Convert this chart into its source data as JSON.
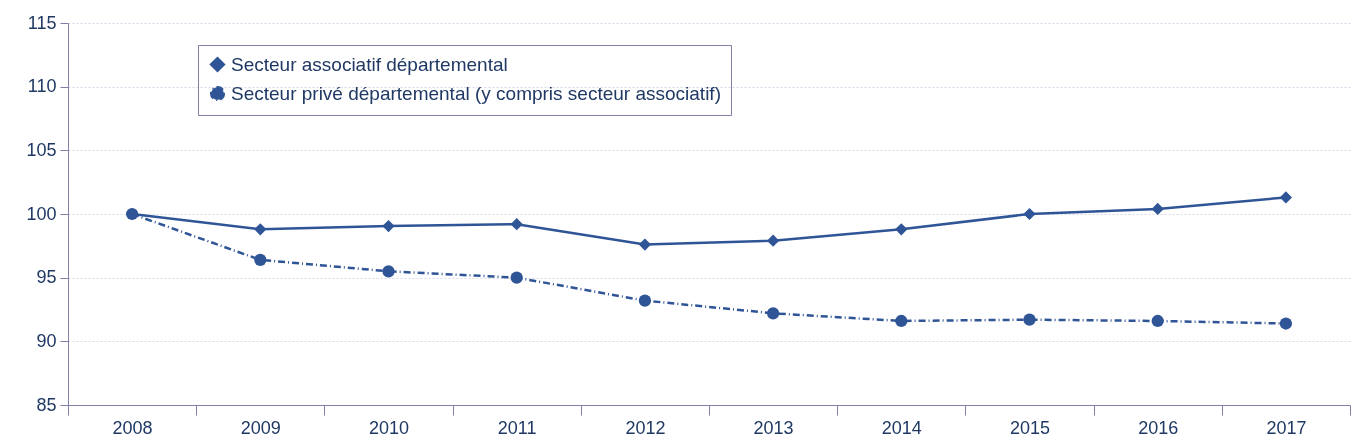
{
  "chart_data": {
    "type": "line",
    "categories": [
      "2008",
      "2009",
      "2010",
      "2011",
      "2012",
      "2013",
      "2014",
      "2015",
      "2016",
      "2017"
    ],
    "series": [
      {
        "name": "Secteur associatif départemental",
        "color": "#2f5597",
        "marker": "diamond",
        "line_style": "solid",
        "values": [
          100,
          98.8,
          99.05,
          99.2,
          97.6,
          97.9,
          98.8,
          100,
          100.4,
          101.3
        ]
      },
      {
        "name": "Secteur privé départemental (y compris secteur associatif)",
        "color": "#2f5597",
        "marker": "circle",
        "line_style": "dashdot",
        "values": [
          100,
          96.4,
          95.5,
          95.0,
          93.2,
          92.2,
          91.6,
          91.7,
          91.6,
          91.4
        ]
      }
    ],
    "ylim": [
      85,
      115
    ],
    "yticks": [
      85,
      90,
      95,
      100,
      105,
      110,
      115
    ],
    "grid": "y",
    "legend": "top left"
  }
}
